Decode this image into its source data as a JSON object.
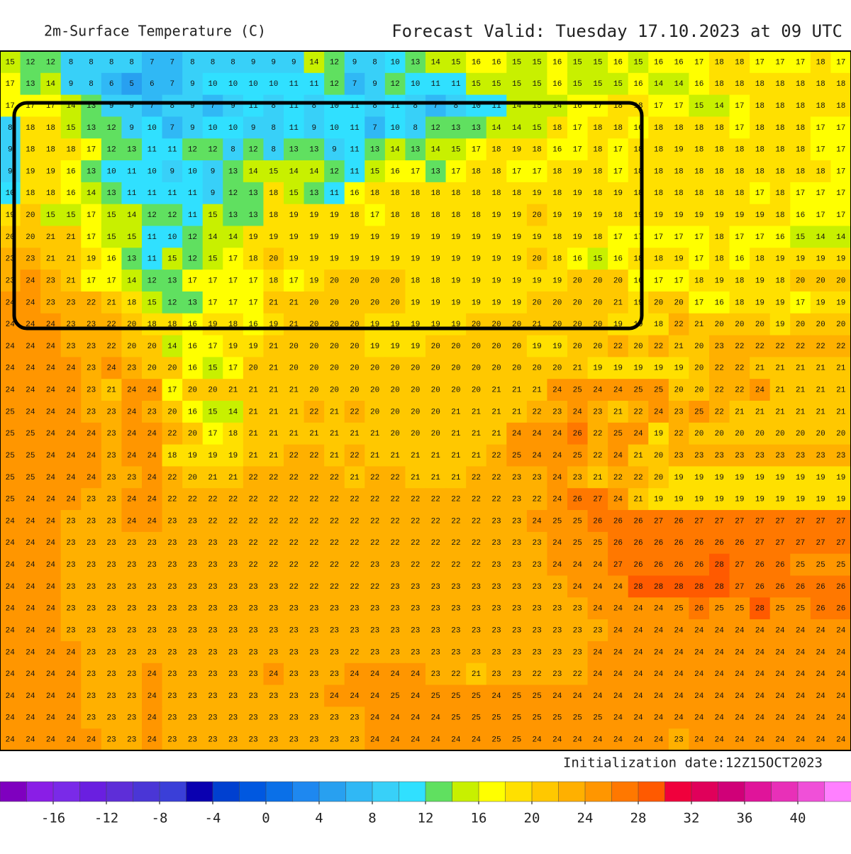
{
  "header": {
    "title": "2m-Surface Temperature (C)",
    "forecast": "Forecast Valid:  Tuesday 17.10.2023 at 09 UTC"
  },
  "map": {
    "grid": [
      [
        15,
        12,
        12,
        8,
        8,
        8,
        8,
        7,
        7,
        8,
        8,
        8,
        9,
        9,
        9,
        14,
        12,
        9,
        8,
        10,
        13,
        14,
        15,
        16,
        16,
        15,
        15,
        16,
        15,
        15,
        16,
        15,
        16,
        16,
        17,
        18,
        18,
        17,
        17,
        17,
        18,
        17
      ],
      [
        17,
        13,
        14,
        9,
        8,
        6,
        5,
        6,
        7,
        9,
        10,
        10,
        10,
        10,
        11,
        11,
        12,
        7,
        9,
        12,
        10,
        11,
        11,
        15,
        15,
        15,
        15,
        16,
        15,
        15,
        15,
        16,
        14,
        14,
        16,
        18,
        18,
        18,
        18,
        18,
        18,
        18
      ],
      [
        17,
        17,
        17,
        14,
        13,
        9,
        9,
        7,
        8,
        9,
        7,
        9,
        11,
        8,
        11,
        8,
        10,
        11,
        8,
        11,
        8,
        7,
        8,
        10,
        11,
        14,
        15,
        14,
        16,
        17,
        18,
        18,
        17,
        17,
        15,
        14,
        17,
        18,
        18,
        18,
        18,
        18
      ],
      [
        8,
        18,
        18,
        15,
        13,
        12,
        9,
        10,
        7,
        9,
        10,
        10,
        9,
        8,
        11,
        9,
        10,
        11,
        7,
        10,
        8,
        12,
        13,
        13,
        14,
        14,
        15,
        18,
        17,
        18,
        18,
        16,
        18,
        18,
        18,
        18,
        17,
        18,
        18,
        18,
        17,
        17
      ],
      [
        9,
        18,
        18,
        18,
        17,
        12,
        13,
        11,
        11,
        12,
        12,
        8,
        12,
        8,
        13,
        13,
        9,
        11,
        13,
        14,
        13,
        14,
        15,
        17,
        18,
        19,
        18,
        16,
        17,
        18,
        17,
        18,
        18,
        19,
        18,
        18,
        18,
        18,
        18,
        18,
        17,
        17
      ],
      [
        9,
        19,
        19,
        16,
        13,
        10,
        11,
        10,
        9,
        10,
        9,
        13,
        14,
        15,
        14,
        14,
        12,
        11,
        15,
        16,
        17,
        13,
        17,
        18,
        18,
        17,
        17,
        18,
        19,
        18,
        17,
        18,
        18,
        18,
        18,
        18,
        18,
        18,
        18,
        18,
        18,
        17
      ],
      [
        10,
        18,
        18,
        16,
        14,
        13,
        11,
        11,
        11,
        11,
        9,
        12,
        13,
        18,
        15,
        13,
        11,
        16,
        18,
        18,
        18,
        18,
        18,
        18,
        18,
        18,
        19,
        18,
        19,
        18,
        19,
        18,
        18,
        18,
        18,
        18,
        18,
        17,
        18,
        17,
        17,
        17
      ],
      [
        19,
        20,
        15,
        15,
        17,
        15,
        14,
        12,
        12,
        11,
        15,
        13,
        13,
        18,
        19,
        19,
        19,
        18,
        17,
        18,
        18,
        18,
        18,
        18,
        19,
        19,
        20,
        19,
        19,
        19,
        18,
        19,
        19,
        19,
        19,
        19,
        19,
        19,
        18,
        16,
        17,
        17
      ],
      [
        20,
        20,
        21,
        21,
        17,
        15,
        15,
        11,
        10,
        12,
        14,
        14,
        19,
        19,
        19,
        19,
        19,
        19,
        19,
        19,
        19,
        19,
        19,
        19,
        19,
        19,
        19,
        18,
        19,
        18,
        17,
        17,
        17,
        17,
        17,
        18,
        17,
        17,
        16,
        15,
        14,
        14
      ],
      [
        23,
        23,
        21,
        21,
        19,
        16,
        13,
        11,
        15,
        12,
        15,
        17,
        18,
        20,
        19,
        19,
        19,
        19,
        19,
        19,
        19,
        19,
        19,
        19,
        19,
        19,
        20,
        18,
        16,
        15,
        16,
        18,
        18,
        19,
        17,
        18,
        16,
        18,
        19,
        19,
        19,
        19
      ],
      [
        23,
        24,
        23,
        21,
        17,
        17,
        14,
        12,
        13,
        17,
        17,
        17,
        17,
        18,
        17,
        19,
        20,
        20,
        20,
        20,
        18,
        18,
        19,
        19,
        19,
        19,
        19,
        19,
        20,
        20,
        20,
        16,
        17,
        17,
        18,
        19,
        18,
        19,
        18,
        20,
        20,
        20
      ],
      [
        24,
        24,
        23,
        23,
        22,
        21,
        18,
        15,
        12,
        13,
        17,
        17,
        17,
        21,
        21,
        20,
        20,
        20,
        20,
        20,
        19,
        19,
        19,
        19,
        19,
        19,
        20,
        20,
        20,
        20,
        21,
        19,
        20,
        20,
        17,
        16,
        18,
        19,
        19,
        17,
        19,
        19
      ],
      [
        24,
        24,
        24,
        23,
        23,
        22,
        20,
        18,
        18,
        16,
        19,
        18,
        16,
        19,
        21,
        20,
        20,
        20,
        19,
        19,
        19,
        19,
        19,
        20,
        20,
        20,
        21,
        20,
        20,
        20,
        19,
        19,
        18,
        22,
        21,
        20,
        20,
        20,
        19,
        20,
        20,
        20
      ],
      [
        24,
        24,
        24,
        23,
        23,
        22,
        20,
        20,
        14,
        16,
        17,
        19,
        19,
        21,
        20,
        20,
        20,
        20,
        19,
        19,
        19,
        20,
        20,
        20,
        20,
        20,
        19,
        19,
        20,
        20,
        22,
        20,
        22,
        21,
        20,
        23,
        22,
        22,
        22,
        22,
        22,
        22
      ],
      [
        24,
        24,
        24,
        24,
        23,
        24,
        23,
        20,
        20,
        16,
        15,
        17,
        20,
        21,
        20,
        20,
        20,
        20,
        20,
        20,
        20,
        20,
        20,
        20,
        20,
        20,
        20,
        20,
        21,
        19,
        19,
        19,
        19,
        19,
        20,
        22,
        22,
        21,
        21,
        21,
        21,
        21
      ],
      [
        24,
        24,
        24,
        24,
        23,
        21,
        24,
        24,
        17,
        20,
        20,
        21,
        21,
        21,
        21,
        20,
        20,
        20,
        20,
        20,
        20,
        20,
        20,
        20,
        21,
        21,
        21,
        24,
        25,
        24,
        24,
        25,
        25,
        20,
        20,
        22,
        22,
        24,
        21,
        21,
        21,
        21
      ],
      [
        25,
        24,
        24,
        24,
        23,
        23,
        24,
        23,
        20,
        16,
        15,
        14,
        21,
        21,
        21,
        22,
        21,
        22,
        20,
        20,
        20,
        20,
        21,
        21,
        21,
        21,
        22,
        23,
        24,
        23,
        21,
        22,
        24,
        23,
        25,
        22,
        21,
        21,
        21,
        21,
        21,
        21
      ],
      [
        25,
        25,
        24,
        24,
        24,
        23,
        24,
        24,
        22,
        20,
        17,
        18,
        21,
        21,
        21,
        21,
        21,
        21,
        21,
        20,
        20,
        20,
        21,
        21,
        21,
        24,
        24,
        24,
        26,
        22,
        25,
        24,
        19,
        22,
        20,
        20,
        20,
        20,
        20,
        20,
        20,
        20
      ],
      [
        25,
        25,
        24,
        24,
        24,
        23,
        24,
        24,
        18,
        19,
        19,
        19,
        21,
        21,
        22,
        22,
        21,
        22,
        21,
        21,
        21,
        21,
        21,
        21,
        22,
        25,
        24,
        24,
        25,
        22,
        24,
        21,
        20,
        23,
        23,
        23,
        23,
        23,
        23,
        23,
        23,
        23
      ],
      [
        25,
        25,
        24,
        24,
        24,
        23,
        23,
        24,
        22,
        20,
        21,
        21,
        22,
        22,
        22,
        22,
        22,
        21,
        22,
        22,
        21,
        21,
        21,
        22,
        22,
        23,
        23,
        24,
        23,
        21,
        22,
        22,
        20,
        19,
        19,
        19,
        19,
        19,
        19,
        19,
        19,
        19
      ],
      [
        25,
        24,
        24,
        24,
        23,
        23,
        24,
        24,
        22,
        22,
        22,
        22,
        22,
        22,
        22,
        22,
        22,
        22,
        22,
        22,
        22,
        22,
        22,
        22,
        22,
        23,
        22,
        24,
        26,
        27,
        24,
        21,
        19,
        19,
        19,
        19,
        19,
        19,
        19,
        19,
        19,
        19
      ],
      [
        24,
        24,
        24,
        23,
        23,
        23,
        24,
        24,
        23,
        23,
        22,
        22,
        22,
        22,
        22,
        22,
        22,
        22,
        22,
        22,
        22,
        22,
        22,
        22,
        23,
        23,
        24,
        25,
        25,
        26,
        26,
        26,
        27,
        26,
        27,
        27,
        27,
        27,
        27,
        27,
        27,
        27
      ],
      [
        24,
        24,
        24,
        23,
        23,
        23,
        23,
        23,
        23,
        23,
        23,
        23,
        22,
        22,
        22,
        22,
        22,
        22,
        22,
        22,
        22,
        22,
        22,
        22,
        23,
        23,
        23,
        24,
        25,
        25,
        26,
        26,
        26,
        26,
        26,
        26,
        26,
        27,
        27,
        27,
        27,
        27
      ],
      [
        24,
        24,
        24,
        23,
        23,
        23,
        23,
        23,
        23,
        23,
        23,
        23,
        22,
        22,
        22,
        22,
        22,
        22,
        23,
        23,
        22,
        22,
        22,
        22,
        23,
        23,
        23,
        24,
        24,
        24,
        27,
        26,
        26,
        26,
        26,
        28,
        27,
        26,
        26,
        25,
        25,
        25
      ],
      [
        24,
        24,
        24,
        23,
        23,
        23,
        23,
        23,
        23,
        23,
        23,
        23,
        23,
        23,
        22,
        22,
        22,
        22,
        22,
        23,
        23,
        23,
        23,
        23,
        23,
        23,
        23,
        23,
        24,
        24,
        24,
        28,
        28,
        28,
        28,
        28,
        27,
        26,
        26,
        26,
        26,
        26
      ],
      [
        24,
        24,
        24,
        23,
        23,
        23,
        23,
        23,
        23,
        23,
        23,
        23,
        23,
        23,
        23,
        23,
        23,
        23,
        23,
        23,
        23,
        23,
        23,
        23,
        23,
        23,
        23,
        23,
        23,
        24,
        24,
        24,
        24,
        25,
        26,
        25,
        25,
        28,
        25,
        25,
        26,
        26
      ],
      [
        24,
        24,
        24,
        23,
        23,
        23,
        23,
        23,
        23,
        23,
        23,
        23,
        23,
        23,
        23,
        23,
        23,
        23,
        23,
        23,
        23,
        23,
        23,
        23,
        23,
        23,
        23,
        23,
        23,
        23,
        24,
        24,
        24,
        24,
        24,
        24,
        24,
        24,
        24,
        24,
        24,
        24
      ],
      [
        24,
        24,
        24,
        24,
        23,
        23,
        23,
        23,
        23,
        23,
        23,
        23,
        23,
        23,
        23,
        23,
        23,
        22,
        23,
        23,
        23,
        23,
        23,
        23,
        23,
        23,
        23,
        23,
        23,
        24,
        24,
        24,
        24,
        24,
        24,
        24,
        24,
        24,
        24,
        24,
        24,
        24
      ],
      [
        24,
        24,
        24,
        24,
        23,
        23,
        23,
        24,
        23,
        23,
        23,
        23,
        23,
        24,
        23,
        23,
        23,
        24,
        24,
        24,
        24,
        23,
        22,
        21,
        23,
        23,
        22,
        23,
        22,
        24,
        24,
        24,
        24,
        24,
        24,
        24,
        24,
        24,
        24,
        24,
        24,
        24
      ],
      [
        24,
        24,
        24,
        24,
        23,
        23,
        23,
        24,
        23,
        23,
        23,
        23,
        23,
        23,
        23,
        23,
        24,
        24,
        24,
        25,
        24,
        25,
        25,
        25,
        24,
        25,
        25,
        24,
        24,
        24,
        24,
        24,
        24,
        24,
        24,
        24,
        24,
        24,
        24,
        24,
        24,
        24
      ],
      [
        24,
        24,
        24,
        24,
        23,
        23,
        23,
        24,
        23,
        23,
        23,
        23,
        23,
        23,
        23,
        23,
        23,
        23,
        24,
        24,
        24,
        24,
        25,
        25,
        25,
        25,
        25,
        25,
        25,
        25,
        24,
        24,
        24,
        24,
        24,
        24,
        24,
        24,
        24,
        24,
        24,
        24
      ],
      [
        24,
        24,
        24,
        24,
        24,
        23,
        23,
        24,
        23,
        23,
        23,
        23,
        23,
        23,
        23,
        23,
        23,
        23,
        24,
        24,
        24,
        24,
        24,
        24,
        25,
        25,
        24,
        24,
        24,
        24,
        24,
        24,
        24,
        23,
        24,
        24,
        24,
        24,
        24,
        24,
        24,
        24
      ]
    ]
  },
  "footer": {
    "init": "Initialization date:12Z15OCT2023"
  },
  "colorbar": {
    "lim": [
      -20,
      44
    ],
    "colors": [
      "#7f00bf",
      "#8a1ee6",
      "#7a2ae8",
      "#6a1fe0",
      "#5e2ed8",
      "#4a36d6",
      "#3a3fd8",
      "#0a00b0",
      "#0040d0",
      "#0058e0",
      "#0a70e8",
      "#1e88f0",
      "#28a0f0",
      "#30b8f5",
      "#38d0f8",
      "#30e0ff",
      "#60e060",
      "#c8f000",
      "#ffff00",
      "#ffe000",
      "#ffc800",
      "#ffb000",
      "#ff9600",
      "#ff7800",
      "#ff5a00",
      "#f0003c",
      "#e0005a",
      "#d00078",
      "#e0149a",
      "#e830b8",
      "#f050d8",
      "#ff80ff"
    ],
    "ticks": [
      -16,
      -12,
      -8,
      -4,
      0,
      4,
      8,
      12,
      16,
      20,
      24,
      28,
      32,
      36,
      40
    ]
  }
}
